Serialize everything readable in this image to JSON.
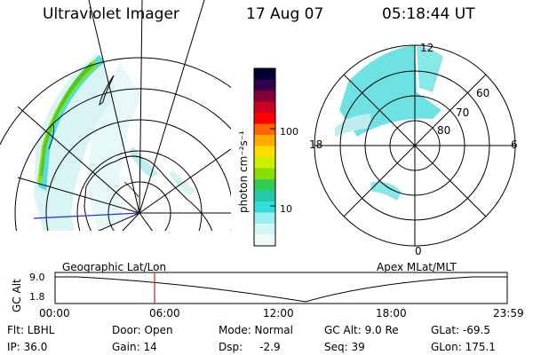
{
  "header": {
    "title": "Ultraviolet Imager",
    "date": "17 Aug 07",
    "time": "05:18:44 UT"
  },
  "colorbar": {
    "label": "photon cm⁻²s⁻¹",
    "ticks": [
      {
        "value": 100,
        "label": "100"
      },
      {
        "value": 10,
        "label": "10"
      }
    ],
    "colors": [
      "#000033",
      "#33004d",
      "#800033",
      "#cc0022",
      "#ff0000",
      "#ff6600",
      "#ffaa00",
      "#ffdd00",
      "#ccee00",
      "#88dd00",
      "#33cc55",
      "#22ccaa",
      "#33dddd",
      "#99eeee",
      "#d6f4f4",
      "#eefafa"
    ]
  },
  "map_left": {
    "caption": "Geographic Lat/Lon"
  },
  "map_right": {
    "caption": "Apex MLat/MLT",
    "lat_labels": [
      "60",
      "70",
      "80"
    ],
    "mlt_labels": {
      "top": "12",
      "left": "18",
      "right": "6",
      "bottom": "0"
    }
  },
  "timeline": {
    "ylabel": "GC Alt",
    "y_ticks": [
      "9.0",
      "1.8"
    ],
    "x_ticks": [
      "00:00",
      "06:00",
      "12:00",
      "18:00",
      "23:59"
    ],
    "marker_time": "05:18:44",
    "marker_color": "#cc2222"
  },
  "footer": {
    "flt": "Flt: LBHL",
    "door": "Door: Open",
    "mode": "Mode: Normal",
    "gc_alt": "GC Alt: 9.0 Re",
    "glat": "GLat: -69.5",
    "ip": "IP: 36.0",
    "gain": "Gain: 14",
    "dsp": "Dsp:     -2.9",
    "seq": "Seq: 39",
    "glon": "GLon: 175.1"
  }
}
